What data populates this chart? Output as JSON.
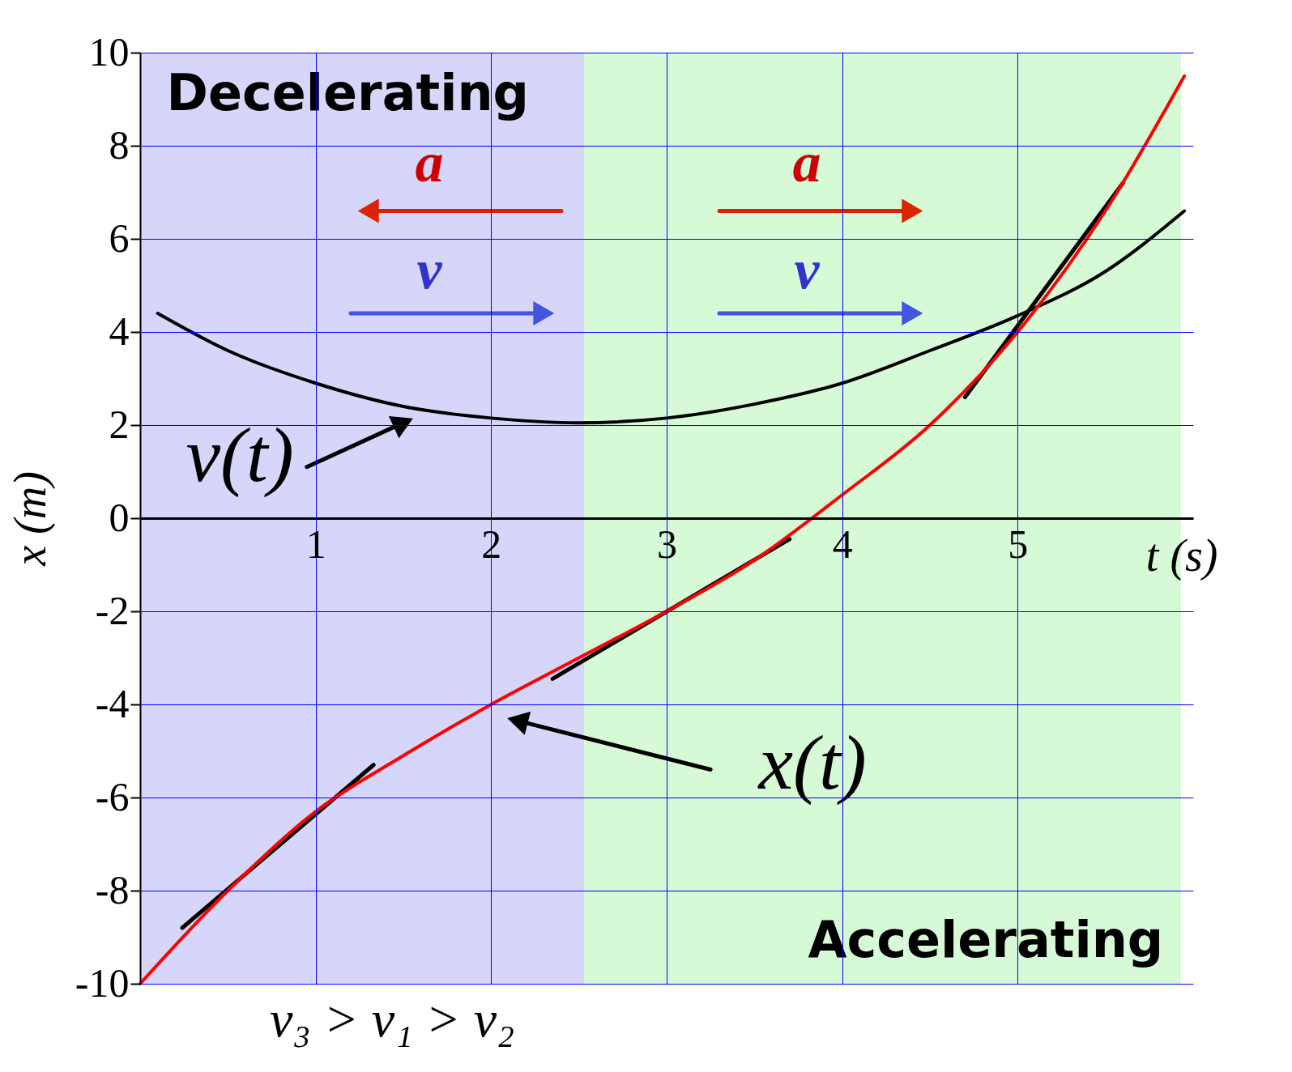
{
  "chart_data": {
    "type": "line",
    "xlabel": "t (s)",
    "ylabel": "x (m)",
    "xlim": [
      0,
      6
    ],
    "ylim": [
      -10,
      10
    ],
    "xticks": [
      1,
      2,
      3,
      4,
      5
    ],
    "yticks": [
      -10,
      -8,
      -6,
      -4,
      -2,
      0,
      2,
      4,
      6,
      8,
      10
    ],
    "grid": true,
    "line_style": "solid",
    "marker": "none",
    "bands": [
      {
        "axis": "x",
        "from": 0,
        "to": 2.53,
        "label": "Decelerating",
        "color": "#d6d6fa"
      },
      {
        "axis": "x",
        "from": 2.53,
        "to": 5.93,
        "label": "Accelerating",
        "color": "#d6fad6"
      }
    ],
    "series": [
      {
        "color": "#ff0000",
        "x": [
          0,
          0.5,
          1,
          1.5,
          2,
          2.5,
          3,
          3.5,
          4,
          4.5,
          5,
          5.5,
          5.95
        ],
        "values": [
          -10,
          -8,
          -6.3,
          -5.1,
          -4,
          -3,
          -2,
          -0.9,
          0.5,
          2.0,
          4.0,
          6.6,
          9.5
        ]
      },
      {
        "color": "#000000",
        "x": [
          0.1,
          0.5,
          1,
          1.5,
          2,
          2.5,
          3,
          3.5,
          4,
          4.5,
          5,
          5.5,
          5.95
        ],
        "values": [
          4.4,
          3.6,
          2.9,
          2.4,
          2.15,
          2.05,
          2.15,
          2.45,
          2.9,
          3.6,
          4.35,
          5.3,
          6.6
        ]
      },
      {
        "color": "#000000",
        "x": [
          0.24,
          1.33
        ],
        "values": [
          -8.8,
          -5.3
        ]
      },
      {
        "color": "#000000",
        "x": [
          2.35,
          3.7
        ],
        "values": [
          -3.45,
          -0.45
        ]
      },
      {
        "color": "#000000",
        "x": [
          4.7,
          5.6
        ],
        "values": [
          2.6,
          7.2
        ]
      },
      {
        "color": "#dd2200",
        "marker": "triangle",
        "x": [
          2.4,
          1.3
        ],
        "values": [
          6.6,
          6.6
        ]
      },
      {
        "color": "#dd2200",
        "marker": "triangle",
        "x": [
          3.3,
          4.4
        ],
        "values": [
          6.6,
          6.6
        ]
      },
      {
        "color": "#4455dd",
        "marker": "triangle",
        "x": [
          1.2,
          2.3
        ],
        "values": [
          4.4,
          4.4
        ]
      },
      {
        "color": "#4455dd",
        "marker": "triangle",
        "x": [
          3.3,
          4.4
        ],
        "values": [
          4.4,
          4.4
        ]
      },
      {
        "color": "#000000",
        "marker": "triangle",
        "x": [
          0.95,
          1.5
        ],
        "values": [
          1.1,
          2.05
        ]
      },
      {
        "color": "#000000",
        "marker": "triangle",
        "x": [
          3.25,
          2.15
        ],
        "values": [
          -5.4,
          -4.35
        ]
      }
    ],
    "annotations": [
      "a",
      "a",
      "v",
      "v",
      "v(t)",
      "x(t)",
      "v₃ > v₁ > v₂"
    ]
  }
}
